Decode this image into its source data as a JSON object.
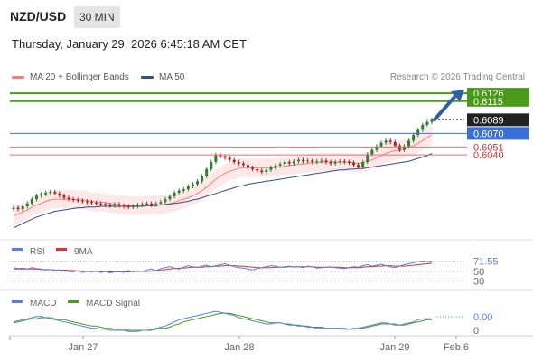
{
  "header": {
    "pair": "NZD/USD",
    "timeframe": "30 MIN",
    "datetime": "Thursday, January 29, 2026 6:45:18 AM CET"
  },
  "legend": {
    "ma_bb": "MA 20 + Bollinger Bands",
    "ma50": "MA 50",
    "credit": "Research © 2026 Trading Central"
  },
  "colors": {
    "resistance": "#4a9a1a",
    "pivot": "#3b6fd8",
    "support": "#e07070",
    "arrow": "#2f5ea8",
    "ma20": "#f08080",
    "ma50": "#2f5088",
    "rsi": "#5a7ee0",
    "rsi_ma": "#e03030",
    "macd": "#5a7ee0",
    "macd_signal": "#4a9a1a"
  },
  "chart_data": [
    {
      "type": "line",
      "title": "NZD/USD price (30 min)",
      "x_labels": [
        "Jan 27",
        "Jan 28",
        "Jan 29",
        "Feb 6"
      ],
      "ylim": [
        0.5925,
        0.6135
      ],
      "levels": [
        {
          "label": "0.6126",
          "value": 0.6126,
          "kind": "resistance"
        },
        {
          "label": "0.6115",
          "value": 0.6115,
          "kind": "resistance"
        },
        {
          "label": "0.6089",
          "value": 0.6089,
          "kind": "last"
        },
        {
          "label": "0.6070",
          "value": 0.607,
          "kind": "pivot"
        },
        {
          "label": "0.6051",
          "value": 0.6051,
          "kind": "support"
        },
        {
          "label": "0.6040",
          "value": 0.604,
          "kind": "support"
        }
      ],
      "series": [
        {
          "name": "Price",
          "values": [
            0.5966,
            0.5964,
            0.5968,
            0.5972,
            0.5978,
            0.5983,
            0.5985,
            0.5987,
            0.5988,
            0.5986,
            0.5983,
            0.598,
            0.5978,
            0.5977,
            0.5976,
            0.5975,
            0.5974,
            0.5973,
            0.5972,
            0.5971,
            0.597,
            0.5969,
            0.5971,
            0.5969,
            0.5968,
            0.5967,
            0.5968,
            0.597,
            0.5971,
            0.5972,
            0.597,
            0.5972,
            0.5974,
            0.5978,
            0.5982,
            0.5987,
            0.599,
            0.5992,
            0.5996,
            0.5999,
            0.6003,
            0.601,
            0.602,
            0.603,
            0.604,
            0.6038,
            0.6036,
            0.6033,
            0.603,
            0.6028,
            0.6026,
            0.6022,
            0.602,
            0.6018,
            0.6016,
            0.6019,
            0.6022,
            0.6025,
            0.6027,
            0.603,
            0.6028,
            0.6031,
            0.6033,
            0.6031,
            0.6032,
            0.603,
            0.6031,
            0.6032,
            0.603,
            0.6028,
            0.603,
            0.6031,
            0.603,
            0.6029,
            0.6026,
            0.6023,
            0.603,
            0.6041,
            0.6047,
            0.6052,
            0.6057,
            0.606,
            0.6058,
            0.6053,
            0.6047,
            0.6052,
            0.606,
            0.6068,
            0.6075,
            0.6082,
            0.6086,
            0.6089
          ]
        },
        {
          "name": "MA 20",
          "values": [
            0.5955,
            0.5957,
            0.596,
            0.5963,
            0.5967,
            0.597,
            0.5972,
            0.5975,
            0.5977,
            0.5978,
            0.5978,
            0.5978,
            0.5978,
            0.5978,
            0.5977,
            0.5977,
            0.5976,
            0.5975,
            0.5974,
            0.5974,
            0.5973,
            0.5972,
            0.5971,
            0.597,
            0.597,
            0.5969,
            0.5969,
            0.5969,
            0.5969,
            0.597,
            0.597,
            0.597,
            0.597,
            0.5971,
            0.5972,
            0.5974,
            0.5976,
            0.5978,
            0.598,
            0.5983,
            0.5986,
            0.599,
            0.5995,
            0.6,
            0.6006,
            0.601,
            0.6014,
            0.6017,
            0.6019,
            0.6021,
            0.6022,
            0.6022,
            0.6022,
            0.6022,
            0.6022,
            0.6022,
            0.6022,
            0.6022,
            0.6023,
            0.6024,
            0.6025,
            0.6026,
            0.6027,
            0.6027,
            0.6028,
            0.6029,
            0.6029,
            0.603,
            0.603,
            0.603,
            0.603,
            0.603,
            0.603,
            0.603,
            0.6029,
            0.6028,
            0.6029,
            0.6031,
            0.6033,
            0.6036,
            0.6039,
            0.6042,
            0.6044,
            0.6046,
            0.6046,
            0.6048,
            0.605,
            0.6053,
            0.6056,
            0.606,
            0.6064,
            0.6068
          ]
        },
        {
          "name": "MA 50",
          "values": [
            0.5938,
            0.5941,
            0.5944,
            0.5947,
            0.595,
            0.5953,
            0.5955,
            0.5957,
            0.5959,
            0.5961,
            0.5962,
            0.5963,
            0.5964,
            0.5965,
            0.5966,
            0.5966,
            0.5967,
            0.5967,
            0.5967,
            0.5968,
            0.5968,
            0.5968,
            0.5968,
            0.5968,
            0.5968,
            0.5968,
            0.5968,
            0.5968,
            0.5968,
            0.5969,
            0.5969,
            0.5969,
            0.597,
            0.597,
            0.5971,
            0.5972,
            0.5973,
            0.5974,
            0.5975,
            0.5977,
            0.5978,
            0.598,
            0.5982,
            0.5984,
            0.5986,
            0.5988,
            0.599,
            0.5992,
            0.5994,
            0.5996,
            0.5997,
            0.5999,
            0.6,
            0.6001,
            0.6002,
            0.6003,
            0.6004,
            0.6005,
            0.6006,
            0.6007,
            0.6008,
            0.6009,
            0.601,
            0.6011,
            0.6012,
            0.6013,
            0.6014,
            0.6015,
            0.6016,
            0.6017,
            0.6018,
            0.6019,
            0.6019,
            0.602,
            0.602,
            0.6021,
            0.6021,
            0.6022,
            0.6023,
            0.6024,
            0.6025,
            0.6026,
            0.6027,
            0.6028,
            0.6029,
            0.603,
            0.6031,
            0.6033,
            0.6035,
            0.6037,
            0.6039,
            0.6042
          ]
        }
      ]
    },
    {
      "type": "line",
      "title": "RSI",
      "legend": [
        "RSI",
        "9MA"
      ],
      "levels": [
        {
          "label": "71.55",
          "value": 71.55
        },
        {
          "label": "50",
          "value": 50
        },
        {
          "label": "30",
          "value": 30
        }
      ],
      "ylim": [
        20,
        80
      ],
      "series": [
        {
          "name": "RSI",
          "values": [
            58,
            56,
            57,
            55,
            58,
            56,
            55,
            53,
            54,
            52,
            53,
            51,
            50,
            49,
            52,
            48,
            50,
            49,
            51,
            48,
            50,
            47,
            49,
            50,
            48,
            52,
            49,
            51,
            50,
            53,
            55,
            52,
            56,
            58,
            60,
            57,
            55,
            59,
            62,
            60,
            58,
            61,
            63,
            60,
            62,
            64,
            66,
            63,
            60,
            58,
            57,
            55,
            53,
            56,
            58,
            60,
            62,
            61,
            59,
            60,
            61,
            59,
            60,
            58,
            61,
            60,
            57,
            58,
            59,
            60,
            58,
            57,
            56,
            58,
            60,
            59,
            62,
            64,
            61,
            63,
            65,
            62,
            60,
            58,
            61,
            64,
            66,
            68,
            70,
            71.55,
            70,
            71.55
          ]
        },
        {
          "name": "9MA",
          "values": [
            55,
            55,
            55,
            55,
            55,
            55,
            54,
            54,
            54,
            53,
            53,
            53,
            52,
            52,
            51,
            51,
            50,
            50,
            50,
            50,
            50,
            49,
            49,
            49,
            49,
            49,
            50,
            50,
            50,
            50,
            51,
            52,
            53,
            54,
            55,
            56,
            57,
            57,
            58,
            59,
            59,
            59,
            60,
            60,
            61,
            61,
            62,
            62,
            62,
            61,
            61,
            60,
            59,
            58,
            58,
            58,
            58,
            59,
            59,
            59,
            60,
            60,
            60,
            60,
            60,
            60,
            59,
            59,
            59,
            59,
            59,
            59,
            58,
            58,
            58,
            58,
            59,
            60,
            60,
            61,
            61,
            62,
            62,
            61,
            61,
            61,
            62,
            63,
            64,
            65,
            66,
            67
          ]
        }
      ]
    },
    {
      "type": "line",
      "title": "MACD",
      "legend": [
        "MACD",
        "MACD Signal"
      ],
      "levels": [
        {
          "label": "0.00",
          "value": 0.0
        },
        {
          "label": "0",
          "value": 0
        }
      ],
      "ylim": [
        -1.2,
        1.2
      ],
      "series": [
        {
          "name": "MACD",
          "values": [
            0.2,
            0.3,
            0.4,
            0.5,
            0.6,
            0.7,
            0.7,
            0.6,
            0.5,
            0.4,
            0.3,
            0.2,
            0.1,
            0.0,
            -0.1,
            -0.2,
            -0.3,
            -0.4,
            -0.4,
            -0.5,
            -0.5,
            -0.6,
            -0.6,
            -0.6,
            -0.6,
            -0.7,
            -0.7,
            -0.7,
            -0.6,
            -0.6,
            -0.5,
            -0.4,
            -0.3,
            -0.2,
            0.0,
            0.2,
            0.4,
            0.5,
            0.6,
            0.7,
            0.8,
            0.9,
            1.0,
            1.1,
            1.2,
            1.1,
            1.0,
            0.9,
            0.8,
            0.6,
            0.5,
            0.4,
            0.3,
            0.2,
            0.1,
            0.0,
            0.0,
            0.1,
            0.1,
            0.0,
            -0.1,
            -0.1,
            -0.2,
            -0.2,
            -0.3,
            -0.3,
            -0.4,
            -0.4,
            -0.4,
            -0.4,
            -0.4,
            -0.4,
            -0.5,
            -0.5,
            -0.5,
            -0.4,
            -0.3,
            -0.2,
            -0.1,
            0.0,
            0.1,
            0.1,
            0.0,
            -0.1,
            -0.1,
            0.0,
            0.1,
            0.2,
            0.4,
            0.5,
            0.5,
            0.5
          ]
        },
        {
          "name": "MACD Signal",
          "values": [
            0.1,
            0.2,
            0.3,
            0.4,
            0.5,
            0.5,
            0.6,
            0.6,
            0.6,
            0.5,
            0.4,
            0.4,
            0.3,
            0.2,
            0.1,
            0.0,
            -0.1,
            -0.2,
            -0.2,
            -0.3,
            -0.4,
            -0.4,
            -0.5,
            -0.5,
            -0.5,
            -0.6,
            -0.6,
            -0.6,
            -0.6,
            -0.6,
            -0.6,
            -0.5,
            -0.4,
            -0.4,
            -0.3,
            -0.1,
            0.0,
            0.2,
            0.3,
            0.4,
            0.5,
            0.6,
            0.7,
            0.8,
            0.9,
            1.0,
            1.0,
            1.0,
            0.9,
            0.8,
            0.7,
            0.6,
            0.5,
            0.4,
            0.3,
            0.2,
            0.1,
            0.1,
            0.1,
            0.0,
            0.0,
            -0.1,
            -0.1,
            -0.2,
            -0.2,
            -0.3,
            -0.3,
            -0.3,
            -0.4,
            -0.4,
            -0.4,
            -0.4,
            -0.4,
            -0.5,
            -0.4,
            -0.4,
            -0.4,
            -0.3,
            -0.2,
            -0.1,
            0.0,
            0.0,
            0.0,
            0.0,
            -0.1,
            -0.1,
            0.0,
            0.1,
            0.2,
            0.3,
            0.4,
            0.4
          ]
        }
      ]
    }
  ]
}
